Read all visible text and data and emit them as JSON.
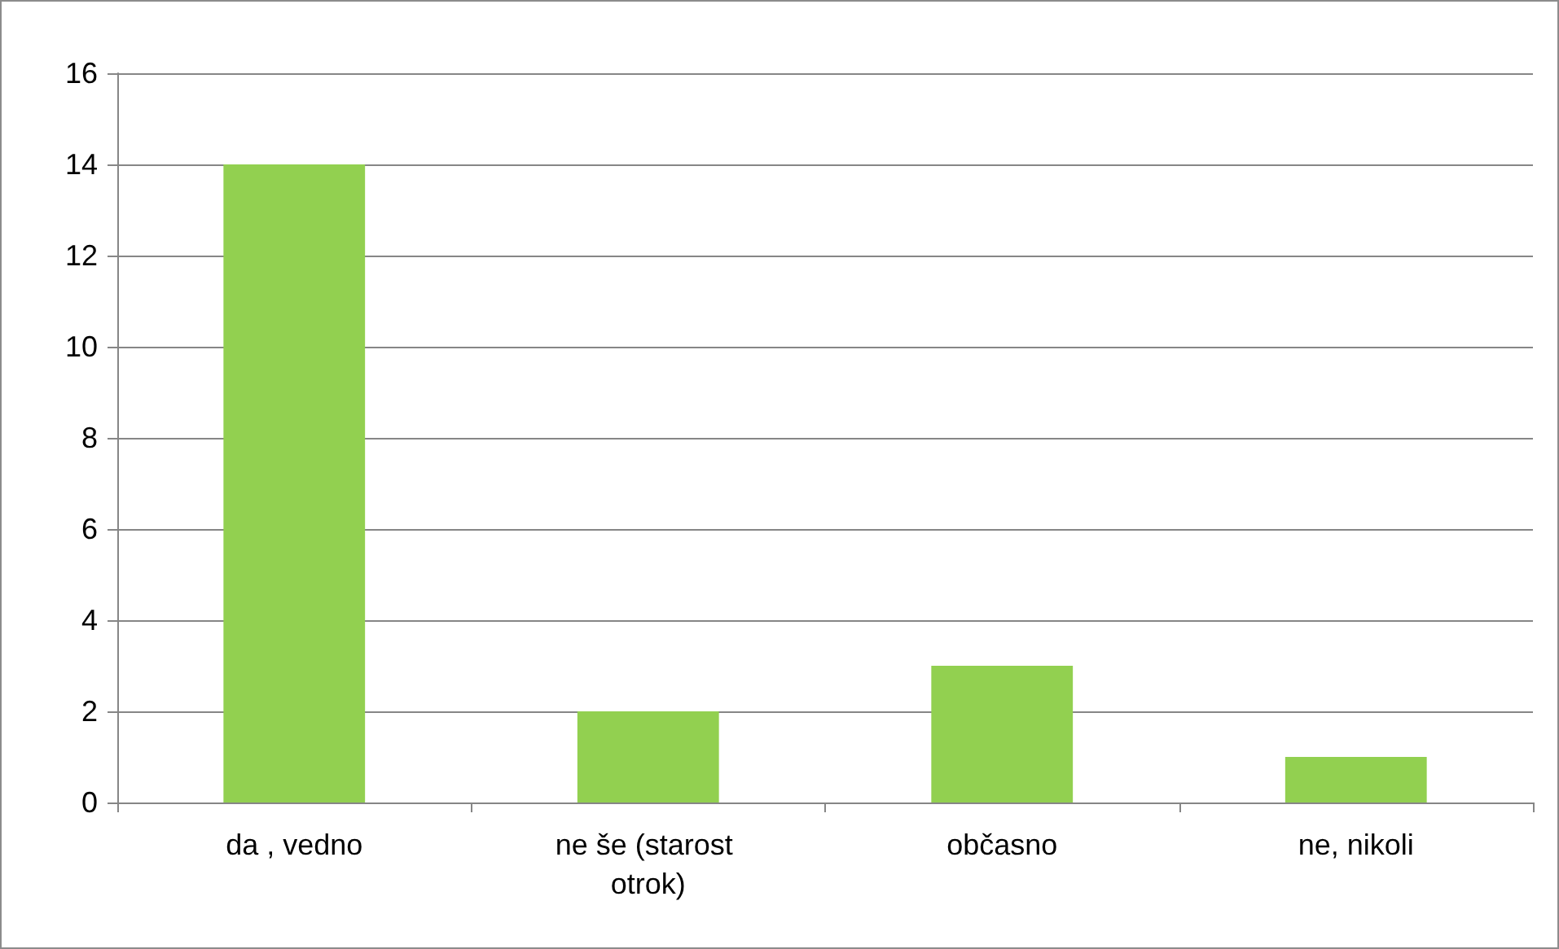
{
  "chart_data": {
    "type": "bar",
    "categories": [
      "da , vedno",
      "ne še (starost otrok)",
      "občasno",
      "ne, nikoli"
    ],
    "values": [
      14,
      2,
      3,
      1
    ],
    "color": "#92d050",
    "ylim": [
      0,
      16
    ],
    "yticks": [
      0,
      2,
      4,
      6,
      8,
      10,
      12,
      14,
      16
    ],
    "grid": "y"
  }
}
